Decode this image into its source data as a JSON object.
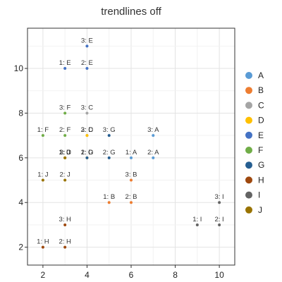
{
  "chart_data": {
    "type": "scatter",
    "title": "trendlines off",
    "xlim": [
      1.3,
      10.7
    ],
    "ylim": [
      1.2,
      11.8
    ],
    "x_ticks": [
      2,
      4,
      6,
      8,
      10
    ],
    "y_ticks": [
      2,
      4,
      6,
      8,
      10
    ],
    "grid": true,
    "legend_position": "right",
    "series": [
      {
        "name": "A",
        "color": "#5a9bd5",
        "points": [
          {
            "x": 6,
            "y": 6,
            "label": "1: A"
          },
          {
            "x": 7,
            "y": 6,
            "label": "2: A"
          },
          {
            "x": 7,
            "y": 7,
            "label": "3: A"
          }
        ]
      },
      {
        "name": "B",
        "color": "#ed7d31",
        "points": [
          {
            "x": 5,
            "y": 4,
            "label": "1: B"
          },
          {
            "x": 6,
            "y": 4,
            "label": "2: B"
          },
          {
            "x": 6,
            "y": 5,
            "label": "3: B"
          }
        ]
      },
      {
        "name": "C",
        "color": "#a5a5a5",
        "points": [
          {
            "x": 3,
            "y": 6,
            "label": "1: C"
          },
          {
            "x": 4,
            "y": 7,
            "label": "2: C"
          },
          {
            "x": 4,
            "y": 8,
            "label": "3: C"
          }
        ]
      },
      {
        "name": "D",
        "color": "#ffc000",
        "points": [
          {
            "x": 3,
            "y": 6,
            "label": "1: D"
          },
          {
            "x": 4,
            "y": 6,
            "label": "2: D"
          },
          {
            "x": 4,
            "y": 7,
            "label": "3: D"
          }
        ]
      },
      {
        "name": "E",
        "color": "#4472c4",
        "points": [
          {
            "x": 3,
            "y": 10,
            "label": "1: E"
          },
          {
            "x": 4,
            "y": 10,
            "label": "2: E"
          },
          {
            "x": 4,
            "y": 11,
            "label": "3: E"
          }
        ]
      },
      {
        "name": "F",
        "color": "#70ad47",
        "points": [
          {
            "x": 2,
            "y": 7,
            "label": "1: F"
          },
          {
            "x": 3,
            "y": 7,
            "label": "2: F"
          },
          {
            "x": 3,
            "y": 8,
            "label": "3: F"
          }
        ]
      },
      {
        "name": "G",
        "color": "#255e91",
        "points": [
          {
            "x": 4,
            "y": 6,
            "label": "1: G"
          },
          {
            "x": 5,
            "y": 6,
            "label": "2: G"
          },
          {
            "x": 5,
            "y": 7,
            "label": "3: G"
          }
        ]
      },
      {
        "name": "H",
        "color": "#9e480e",
        "points": [
          {
            "x": 2,
            "y": 2,
            "label": "1: H"
          },
          {
            "x": 3,
            "y": 2,
            "label": "2: H"
          },
          {
            "x": 3,
            "y": 3,
            "label": "3: H"
          }
        ]
      },
      {
        "name": "I",
        "color": "#636363",
        "points": [
          {
            "x": 9,
            "y": 3,
            "label": "1: I"
          },
          {
            "x": 10,
            "y": 3,
            "label": "2: I"
          },
          {
            "x": 10,
            "y": 4,
            "label": "3: I"
          }
        ]
      },
      {
        "name": "J",
        "color": "#997300",
        "points": [
          {
            "x": 2,
            "y": 5,
            "label": "1: J"
          },
          {
            "x": 3,
            "y": 5,
            "label": "2: J"
          },
          {
            "x": 3,
            "y": 6,
            "label": "3: J"
          }
        ]
      }
    ]
  }
}
